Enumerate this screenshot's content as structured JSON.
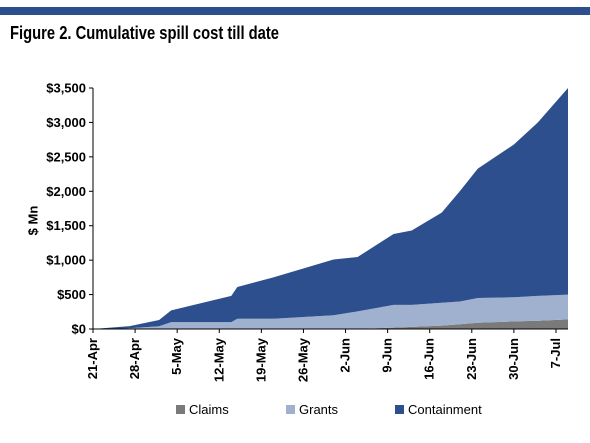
{
  "figure": {
    "title": "Figure 2. Cumulative spill cost till date"
  },
  "colors": {
    "claims": "#7a7a7a",
    "grants": "#9fb1cf",
    "containment": "#2e4f8d",
    "bar": "#2e4f8d"
  },
  "chart_data": {
    "type": "area",
    "stacked": true,
    "title": "Figure 2. Cumulative spill cost till date",
    "xlabel": "",
    "ylabel": "$ Mn",
    "ylim": [
      0,
      3500
    ],
    "yticks": [
      "$0",
      "$500",
      "$1,000",
      "$1,500",
      "$2,000",
      "$2,500",
      "$3,000",
      "$3,500"
    ],
    "ytick_values": [
      0,
      500,
      1000,
      1500,
      2000,
      2500,
      3000,
      3500
    ],
    "xticks": [
      "21-Apr",
      "28-Apr",
      "5-May",
      "12-May",
      "19-May",
      "26-May",
      "2-Jun",
      "9-Jun",
      "16-Jun",
      "23-Jun",
      "30-Jun",
      "7-Jul"
    ],
    "xtick_days": [
      0,
      7,
      14,
      21,
      28,
      35,
      42,
      49,
      56,
      63,
      70,
      77
    ],
    "x": [
      0,
      6,
      11,
      13,
      23,
      24,
      30,
      40,
      44,
      50,
      53,
      58,
      61,
      64,
      70,
      74,
      79
    ],
    "series": [
      {
        "name": "Claims",
        "values": [
          0,
          0,
          0,
          0,
          0,
          0,
          0,
          0,
          5,
          20,
          30,
          50,
          70,
          90,
          110,
          120,
          140
        ]
      },
      {
        "name": "Grants",
        "values": [
          0,
          10,
          40,
          100,
          100,
          150,
          150,
          200,
          250,
          330,
          320,
          330,
          330,
          360,
          350,
          360,
          360
        ]
      },
      {
        "name": "Containment",
        "values": [
          0,
          30,
          90,
          170,
          380,
          460,
          600,
          810,
          790,
          1030,
          1080,
          1310,
          1600,
          1880,
          2220,
          2520,
          3000
        ]
      }
    ],
    "legend": {
      "position": "bottom",
      "items": [
        "Claims",
        "Grants",
        "Containment"
      ]
    },
    "grid": false
  }
}
